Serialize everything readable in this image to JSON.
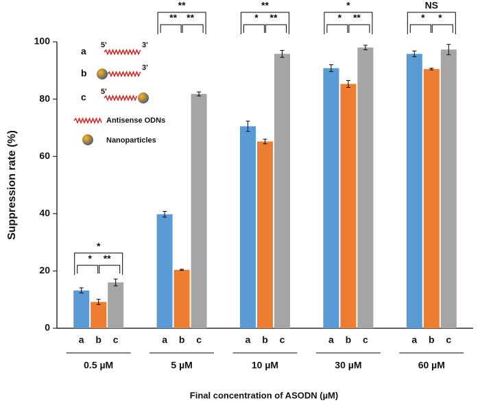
{
  "chart_data": {
    "type": "bar",
    "y_label": "Suppression rate (%)",
    "x_label": "Final concentration of ASODN (µM)",
    "categories": [
      "0.5 µM",
      "5 µM",
      "10 µM",
      "30 µM",
      "60 µM"
    ],
    "series": [
      {
        "name": "a",
        "color": "#5b9bd5",
        "values": [
          13.2,
          39.8,
          70.5,
          90.8,
          95.8
        ],
        "errors": [
          0.9,
          1.0,
          1.8,
          1.2,
          1.0
        ]
      },
      {
        "name": "b",
        "color": "#ed7d31",
        "values": [
          9.2,
          20.4,
          65.2,
          85.3,
          90.5
        ],
        "errors": [
          0.9,
          0.2,
          0.8,
          1.2,
          0.3
        ]
      },
      {
        "name": "c",
        "color": "#a5a5a5",
        "values": [
          16.0,
          81.8,
          95.8,
          98.0,
          97.3
        ],
        "errors": [
          1.2,
          0.7,
          1.2,
          0.8,
          1.8
        ]
      }
    ],
    "significance": [
      {
        "overall": "*",
        "a_b": "*",
        "b_c": "**"
      },
      {
        "overall": "**",
        "a_b": "**",
        "b_c": "**"
      },
      {
        "overall": "**",
        "a_b": "*",
        "b_c": "**"
      },
      {
        "overall": "*",
        "a_b": "*",
        "b_c": "**"
      },
      {
        "overall": "NS",
        "a_b": "*",
        "b_c": "*"
      }
    ],
    "legend": {
      "five_prime": "5'",
      "three_prime": "3'",
      "odn": "Antisense ODNs",
      "nanoparticle": "Nanoparticles"
    },
    "ylim": [
      0,
      100
    ],
    "yticks": [
      0,
      20,
      40,
      60,
      80,
      100
    ],
    "grid": false
  }
}
